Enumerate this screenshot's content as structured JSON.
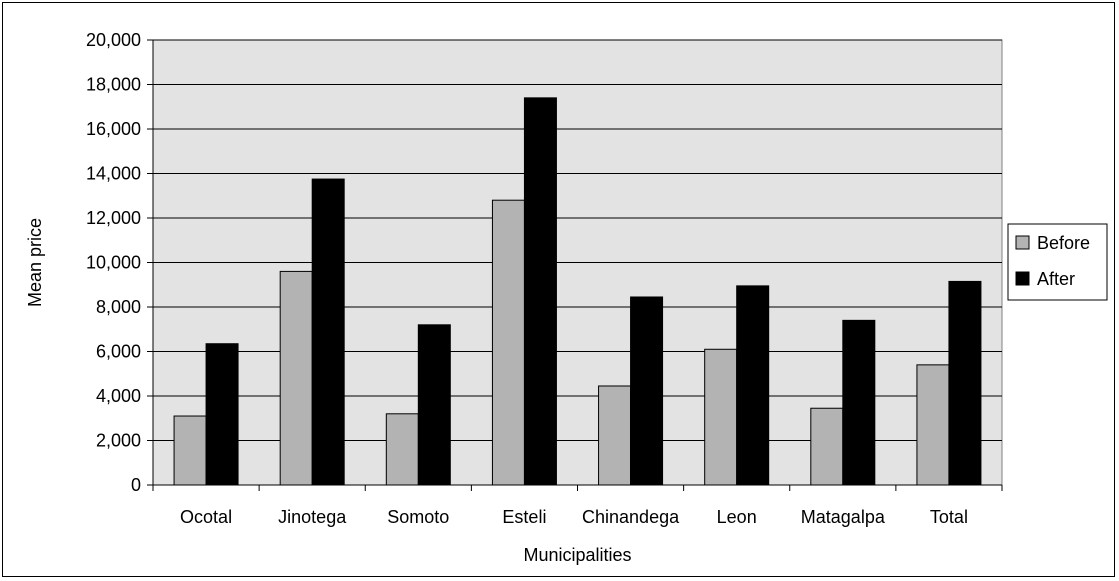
{
  "chart_data": {
    "type": "bar",
    "title": "",
    "xlabel": "Municipalities",
    "ylabel": "Mean price",
    "ylim": [
      0,
      20000
    ],
    "yticks": [
      0,
      2000,
      4000,
      6000,
      8000,
      10000,
      12000,
      14000,
      16000,
      18000,
      20000
    ],
    "ytick_labels": [
      "0",
      "2,000",
      "4,000",
      "6,000",
      "8,000",
      "10,000",
      "12,000",
      "14,000",
      "16,000",
      "18,000",
      "20,000"
    ],
    "categories": [
      "Ocotal",
      "Jinotega",
      "Somoto",
      "Esteli",
      "Chinandega",
      "Leon",
      "Matagalpa",
      "Total"
    ],
    "series": [
      {
        "name": "Before",
        "color": "#b3b3b3",
        "values": [
          3100,
          9600,
          3200,
          12800,
          4450,
          6100,
          3450,
          5400
        ]
      },
      {
        "name": "After",
        "color": "#000000",
        "values": [
          6350,
          13750,
          7200,
          17400,
          8450,
          8950,
          7400,
          9150
        ]
      }
    ],
    "grid": true,
    "plot_background": "#e3e3e3",
    "legend_position": "right"
  }
}
